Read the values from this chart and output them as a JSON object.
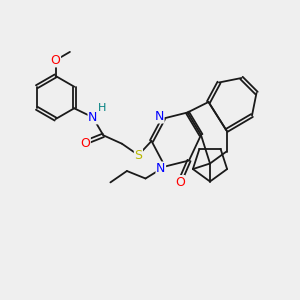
{
  "background_color": "#efefef",
  "bond_color": "#1a1a1a",
  "N_color": "#0000ff",
  "O_color": "#ff0000",
  "S_color": "#b8b800",
  "H_color": "#008080",
  "font_size": 8,
  "lw": 1.3,
  "xlim": [
    0,
    10
  ],
  "ylim": [
    0,
    10
  ]
}
